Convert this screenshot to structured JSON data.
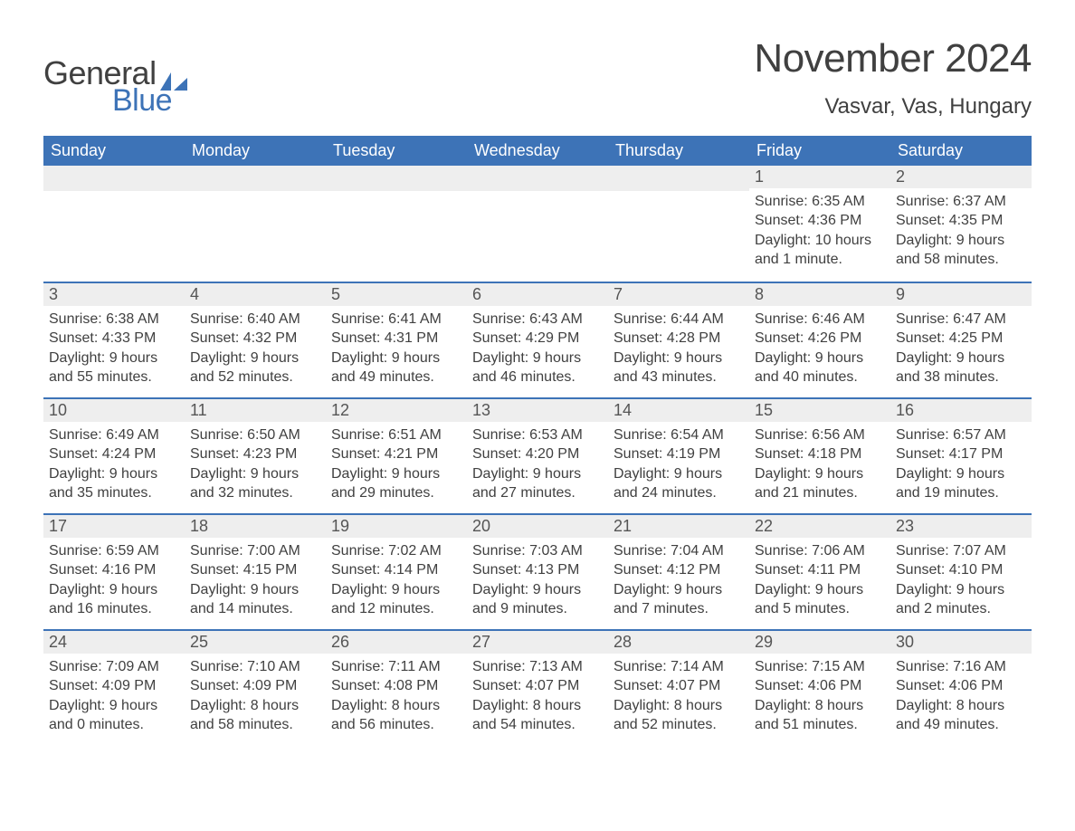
{
  "logo": {
    "text_general": "General",
    "text_blue": "Blue",
    "glyph_color": "#3d73b7"
  },
  "title": {
    "month": "November 2024",
    "location": "Vasvar, Vas, Hungary"
  },
  "colors": {
    "header_bg": "#3d73b7",
    "header_fg": "#ffffff",
    "daynum_bg": "#eeeeee",
    "day_border": "#3d73b7",
    "body_text": "#404040"
  },
  "weekdays": [
    "Sunday",
    "Monday",
    "Tuesday",
    "Wednesday",
    "Thursday",
    "Friday",
    "Saturday"
  ],
  "weeks": [
    [
      null,
      null,
      null,
      null,
      null,
      {
        "day": "1",
        "sunrise": "Sunrise: 6:35 AM",
        "sunset": "Sunset: 4:36 PM",
        "daylight": "Daylight: 10 hours and 1 minute."
      },
      {
        "day": "2",
        "sunrise": "Sunrise: 6:37 AM",
        "sunset": "Sunset: 4:35 PM",
        "daylight": "Daylight: 9 hours and 58 minutes."
      }
    ],
    [
      {
        "day": "3",
        "sunrise": "Sunrise: 6:38 AM",
        "sunset": "Sunset: 4:33 PM",
        "daylight": "Daylight: 9 hours and 55 minutes."
      },
      {
        "day": "4",
        "sunrise": "Sunrise: 6:40 AM",
        "sunset": "Sunset: 4:32 PM",
        "daylight": "Daylight: 9 hours and 52 minutes."
      },
      {
        "day": "5",
        "sunrise": "Sunrise: 6:41 AM",
        "sunset": "Sunset: 4:31 PM",
        "daylight": "Daylight: 9 hours and 49 minutes."
      },
      {
        "day": "6",
        "sunrise": "Sunrise: 6:43 AM",
        "sunset": "Sunset: 4:29 PM",
        "daylight": "Daylight: 9 hours and 46 minutes."
      },
      {
        "day": "7",
        "sunrise": "Sunrise: 6:44 AM",
        "sunset": "Sunset: 4:28 PM",
        "daylight": "Daylight: 9 hours and 43 minutes."
      },
      {
        "day": "8",
        "sunrise": "Sunrise: 6:46 AM",
        "sunset": "Sunset: 4:26 PM",
        "daylight": "Daylight: 9 hours and 40 minutes."
      },
      {
        "day": "9",
        "sunrise": "Sunrise: 6:47 AM",
        "sunset": "Sunset: 4:25 PM",
        "daylight": "Daylight: 9 hours and 38 minutes."
      }
    ],
    [
      {
        "day": "10",
        "sunrise": "Sunrise: 6:49 AM",
        "sunset": "Sunset: 4:24 PM",
        "daylight": "Daylight: 9 hours and 35 minutes."
      },
      {
        "day": "11",
        "sunrise": "Sunrise: 6:50 AM",
        "sunset": "Sunset: 4:23 PM",
        "daylight": "Daylight: 9 hours and 32 minutes."
      },
      {
        "day": "12",
        "sunrise": "Sunrise: 6:51 AM",
        "sunset": "Sunset: 4:21 PM",
        "daylight": "Daylight: 9 hours and 29 minutes."
      },
      {
        "day": "13",
        "sunrise": "Sunrise: 6:53 AM",
        "sunset": "Sunset: 4:20 PM",
        "daylight": "Daylight: 9 hours and 27 minutes."
      },
      {
        "day": "14",
        "sunrise": "Sunrise: 6:54 AM",
        "sunset": "Sunset: 4:19 PM",
        "daylight": "Daylight: 9 hours and 24 minutes."
      },
      {
        "day": "15",
        "sunrise": "Sunrise: 6:56 AM",
        "sunset": "Sunset: 4:18 PM",
        "daylight": "Daylight: 9 hours and 21 minutes."
      },
      {
        "day": "16",
        "sunrise": "Sunrise: 6:57 AM",
        "sunset": "Sunset: 4:17 PM",
        "daylight": "Daylight: 9 hours and 19 minutes."
      }
    ],
    [
      {
        "day": "17",
        "sunrise": "Sunrise: 6:59 AM",
        "sunset": "Sunset: 4:16 PM",
        "daylight": "Daylight: 9 hours and 16 minutes."
      },
      {
        "day": "18",
        "sunrise": "Sunrise: 7:00 AM",
        "sunset": "Sunset: 4:15 PM",
        "daylight": "Daylight: 9 hours and 14 minutes."
      },
      {
        "day": "19",
        "sunrise": "Sunrise: 7:02 AM",
        "sunset": "Sunset: 4:14 PM",
        "daylight": "Daylight: 9 hours and 12 minutes."
      },
      {
        "day": "20",
        "sunrise": "Sunrise: 7:03 AM",
        "sunset": "Sunset: 4:13 PM",
        "daylight": "Daylight: 9 hours and 9 minutes."
      },
      {
        "day": "21",
        "sunrise": "Sunrise: 7:04 AM",
        "sunset": "Sunset: 4:12 PM",
        "daylight": "Daylight: 9 hours and 7 minutes."
      },
      {
        "day": "22",
        "sunrise": "Sunrise: 7:06 AM",
        "sunset": "Sunset: 4:11 PM",
        "daylight": "Daylight: 9 hours and 5 minutes."
      },
      {
        "day": "23",
        "sunrise": "Sunrise: 7:07 AM",
        "sunset": "Sunset: 4:10 PM",
        "daylight": "Daylight: 9 hours and 2 minutes."
      }
    ],
    [
      {
        "day": "24",
        "sunrise": "Sunrise: 7:09 AM",
        "sunset": "Sunset: 4:09 PM",
        "daylight": "Daylight: 9 hours and 0 minutes."
      },
      {
        "day": "25",
        "sunrise": "Sunrise: 7:10 AM",
        "sunset": "Sunset: 4:09 PM",
        "daylight": "Daylight: 8 hours and 58 minutes."
      },
      {
        "day": "26",
        "sunrise": "Sunrise: 7:11 AM",
        "sunset": "Sunset: 4:08 PM",
        "daylight": "Daylight: 8 hours and 56 minutes."
      },
      {
        "day": "27",
        "sunrise": "Sunrise: 7:13 AM",
        "sunset": "Sunset: 4:07 PM",
        "daylight": "Daylight: 8 hours and 54 minutes."
      },
      {
        "day": "28",
        "sunrise": "Sunrise: 7:14 AM",
        "sunset": "Sunset: 4:07 PM",
        "daylight": "Daylight: 8 hours and 52 minutes."
      },
      {
        "day": "29",
        "sunrise": "Sunrise: 7:15 AM",
        "sunset": "Sunset: 4:06 PM",
        "daylight": "Daylight: 8 hours and 51 minutes."
      },
      {
        "day": "30",
        "sunrise": "Sunrise: 7:16 AM",
        "sunset": "Sunset: 4:06 PM",
        "daylight": "Daylight: 8 hours and 49 minutes."
      }
    ]
  ]
}
